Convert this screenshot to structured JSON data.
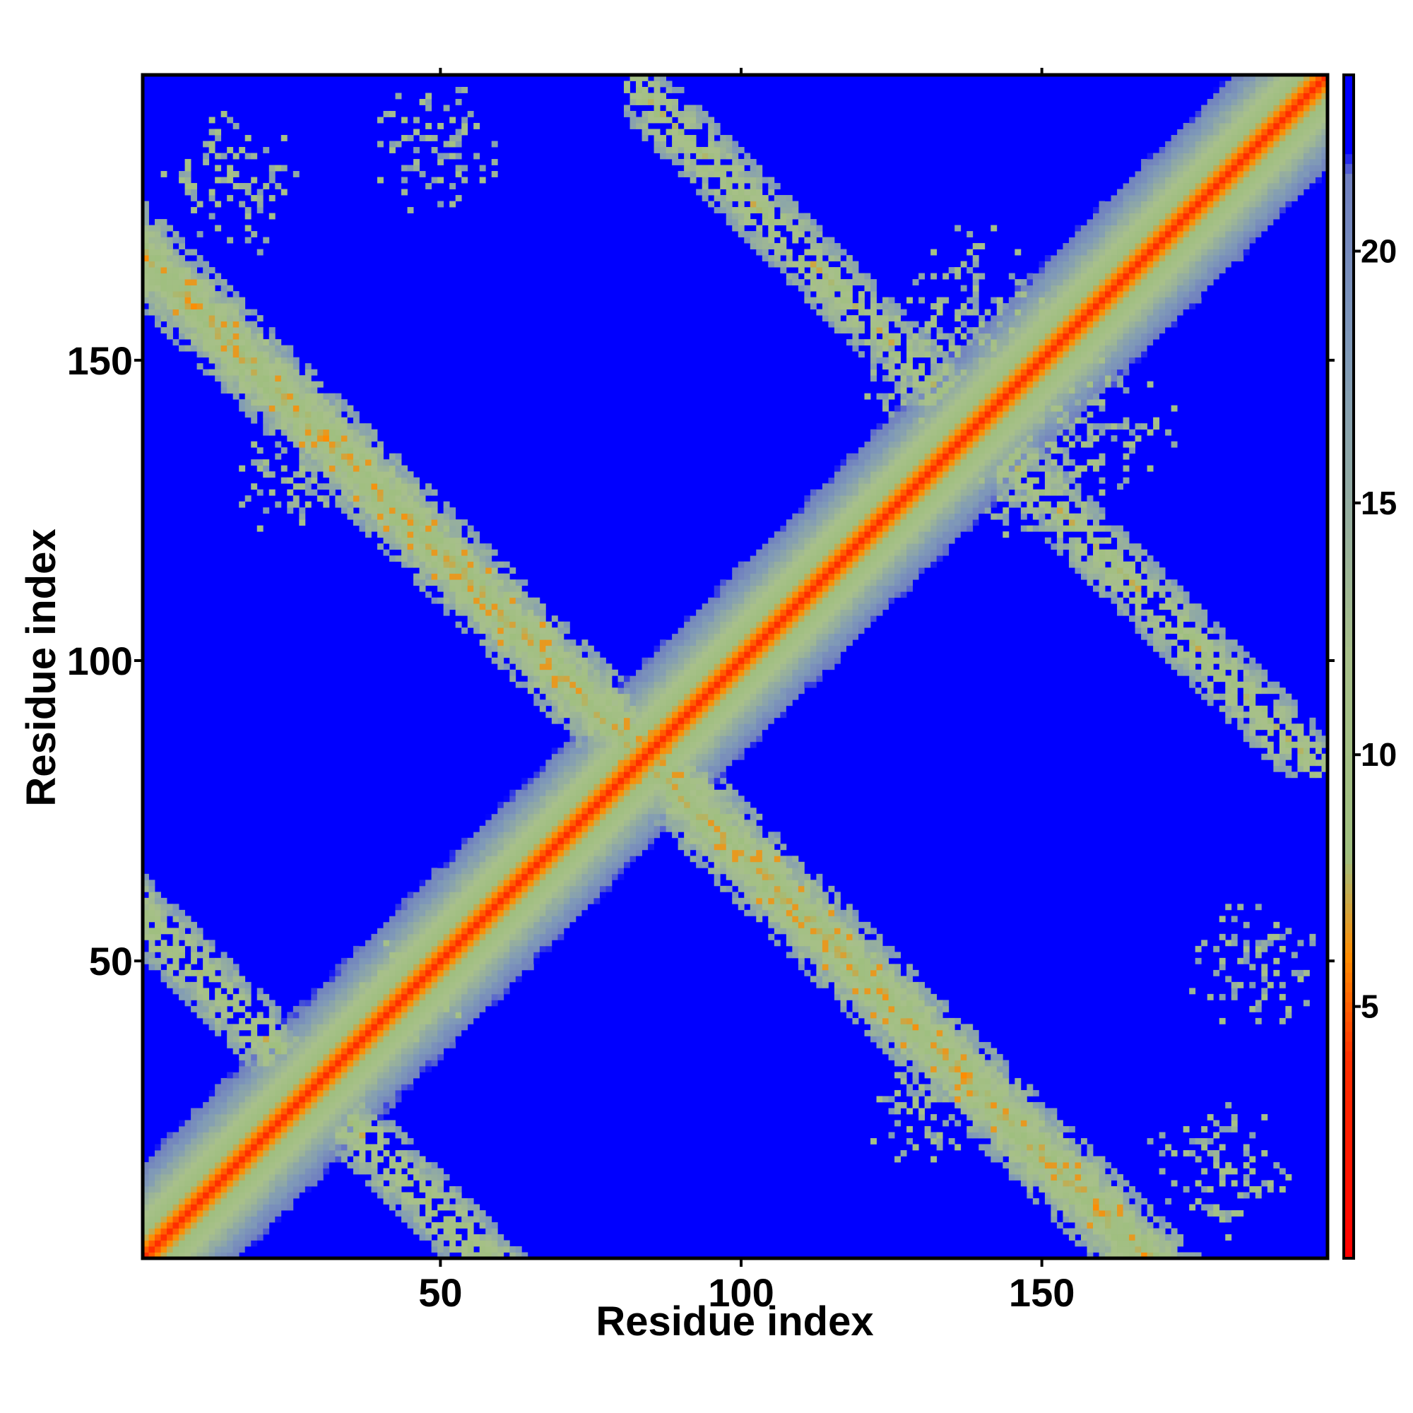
{
  "chart_data": {
    "type": "heatmap",
    "title": "",
    "xlabel": "Residue index",
    "ylabel": "Residue index",
    "xlim": [
      1,
      197
    ],
    "ylim": [
      1,
      197
    ],
    "n_residues": 197,
    "x_ticks": [
      50,
      100,
      150
    ],
    "y_ticks": [
      50,
      100,
      150
    ],
    "colorbar": {
      "range": [
        0,
        23.5
      ],
      "ticks": [
        5,
        10,
        15,
        20
      ],
      "stops": [
        {
          "value": 0,
          "color": "#ff0000"
        },
        {
          "value": 4.0,
          "color": "#ff3000"
        },
        {
          "value": 6.0,
          "color": "#ff8c00"
        },
        {
          "value": 8.0,
          "color": "#9fbf7f"
        },
        {
          "value": 12.0,
          "color": "#a8c08a"
        },
        {
          "value": 18.0,
          "color": "#7f99b8"
        },
        {
          "value": 21.5,
          "color": "#7080c0"
        },
        {
          "value": 22.0,
          "color": "#0000ff"
        }
      ]
    },
    "structure": {
      "description_free_values": true,
      "main_diagonal": {
        "core_distance": 3.8,
        "band_width_residues": 16
      },
      "anti_diagonal_contacts": [
        {
          "center_x": 84,
          "center_y": 84,
          "axis": "x+y=168",
          "extent": [
            1,
            197
          ]
        },
        {
          "center_x": 29,
          "center_y": 29,
          "axis": "x+y=58",
          "extent": [
            1,
            58
          ]
        },
        {
          "center_x": 139,
          "center_y": 139,
          "axis": "x+y=278",
          "extent": [
            81,
            197
          ]
        }
      ],
      "off_diagonal_bands": [
        {
          "from": [
            1,
            180
          ],
          "to": [
            85,
            84
          ],
          "note": "upper-left antiparallel band"
        },
        {
          "from": [
            84,
            85
          ],
          "to": [
            180,
            1
          ],
          "note": "lower-right antiparallel band"
        }
      ],
      "background_distance": 23
    }
  }
}
